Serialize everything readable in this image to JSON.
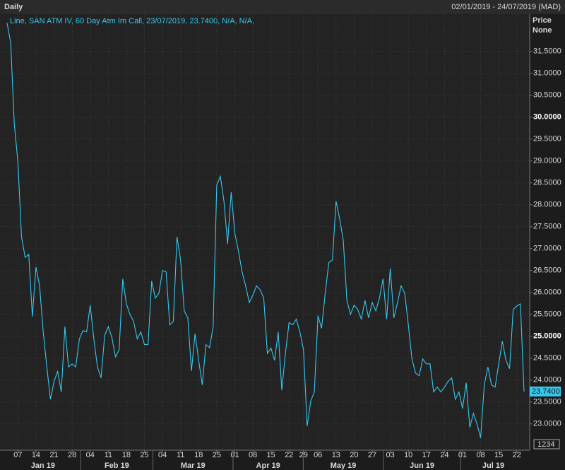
{
  "chart_data": {
    "type": "line",
    "title": "Daily",
    "date_range": "02/01/2019 - 24/07/2019 (MAD)",
    "axis_title": "Price",
    "axis_subtitle": "None",
    "scale_button": "1234",
    "categories": [
      null,
      null,
      null,
      "07",
      null,
      null,
      null,
      null,
      "14",
      null,
      null,
      null,
      null,
      "21",
      null,
      null,
      null,
      null,
      "28",
      null,
      null,
      null,
      null,
      "04",
      null,
      null,
      null,
      null,
      "11",
      null,
      null,
      null,
      null,
      "18",
      null,
      null,
      null,
      null,
      "25",
      null,
      null,
      null,
      null,
      "04",
      null,
      null,
      null,
      null,
      "11",
      null,
      null,
      null,
      null,
      "18",
      null,
      null,
      null,
      null,
      "25",
      null,
      null,
      null,
      null,
      "01",
      null,
      null,
      null,
      null,
      "08",
      null,
      null,
      null,
      null,
      "15",
      null,
      null,
      null,
      null,
      "22",
      null,
      null,
      null,
      "29",
      null,
      null,
      null,
      "06",
      null,
      null,
      null,
      null,
      "13",
      null,
      null,
      null,
      null,
      "20",
      null,
      null,
      null,
      null,
      "27",
      null,
      null,
      null,
      null,
      "03",
      null,
      null,
      null,
      null,
      "10",
      null,
      null,
      null,
      null,
      "17",
      null,
      null,
      null,
      null,
      "24",
      null,
      null,
      null,
      null,
      "01",
      null,
      null,
      null,
      null,
      "08",
      null,
      null,
      null,
      null,
      "15",
      null,
      null,
      null,
      null,
      "22",
      null,
      null
    ],
    "months": [
      "Jan 19",
      "Feb 19",
      "Mar 19",
      "Apr 19",
      "May 19",
      "Jun 19",
      "Jul 19"
    ],
    "series": [
      {
        "name": "Line, SAN ATM IV, 60 Day Atm Im Call, 23/07/2019, 23.7400, N/A, N/A,",
        "color": "#36c8ee",
        "values": [
          32.15,
          31.7,
          29.85,
          28.97,
          27.27,
          26.8,
          26.87,
          25.45,
          26.58,
          26.15,
          25.1,
          24.3,
          23.56,
          23.97,
          24.2,
          23.73,
          25.22,
          24.3,
          24.37,
          24.3,
          24.94,
          25.13,
          25.1,
          25.71,
          24.94,
          24.3,
          24.05,
          25.02,
          25.22,
          24.97,
          24.53,
          24.69,
          26.31,
          25.74,
          25.5,
          25.34,
          24.94,
          25.1,
          24.81,
          24.81,
          26.26,
          25.87,
          25.98,
          26.5,
          26.47,
          25.26,
          25.34,
          27.27,
          26.74,
          25.58,
          25.42,
          24.21,
          25.06,
          24.45,
          23.89,
          24.81,
          24.74,
          25.21,
          28.45,
          28.65,
          28.08,
          27.11,
          28.29,
          27.35,
          26.95,
          26.47,
          26.15,
          25.77,
          25.94,
          26.15,
          26.06,
          25.87,
          24.61,
          24.73,
          24.45,
          25.1,
          23.77,
          24.61,
          25.31,
          25.26,
          25.39,
          25.1,
          24.69,
          22.95,
          23.52,
          23.73,
          25.47,
          25.18,
          25.98,
          26.68,
          26.74,
          28.08,
          27.68,
          27.19,
          25.82,
          25.5,
          25.71,
          25.61,
          25.39,
          25.82,
          25.42,
          25.77,
          25.58,
          25.87,
          26.31,
          25.39,
          26.55,
          25.42,
          25.77,
          26.15,
          25.98,
          25.26,
          24.48,
          24.16,
          24.1,
          24.48,
          24.37,
          24.37,
          23.73,
          23.84,
          23.73,
          23.84,
          23.97,
          24.05,
          23.56,
          23.73,
          23.35,
          23.94,
          22.92,
          23.24,
          23.0,
          22.68,
          23.89,
          24.3,
          23.89,
          23.84,
          24.37,
          24.89,
          24.45,
          24.26,
          25.61,
          25.69,
          25.74,
          23.74
        ]
      }
    ],
    "current_price": {
      "value": 23.74,
      "label": "23.7400"
    },
    "ylim": [
      22.4,
      32.35
    ],
    "yticks": [
      {
        "value": 23.0,
        "label": "23.0000"
      },
      {
        "value": 23.5,
        "label": "23.5000"
      },
      {
        "value": 24.0,
        "label": "24.0000"
      },
      {
        "value": 24.5,
        "label": "24.5000"
      },
      {
        "value": 25.0,
        "label": "25.0000"
      },
      {
        "value": 25.5,
        "label": "25.5000"
      },
      {
        "value": 26.0,
        "label": "26.0000"
      },
      {
        "value": 26.5,
        "label": "26.5000"
      },
      {
        "value": 27.0,
        "label": "27.0000"
      },
      {
        "value": 27.5,
        "label": "27.5000"
      },
      {
        "value": 28.0,
        "label": "28.0000"
      },
      {
        "value": 28.5,
        "label": "28.5000"
      },
      {
        "value": 29.0,
        "label": "29.0000"
      },
      {
        "value": 29.5,
        "label": "29.5000"
      },
      {
        "value": 30.0,
        "label": "30.0000"
      },
      {
        "value": 30.5,
        "label": "30.5000"
      },
      {
        "value": 31.0,
        "label": "31.0000"
      },
      {
        "value": 31.5,
        "label": "31.5000"
      }
    ],
    "grid": true
  }
}
